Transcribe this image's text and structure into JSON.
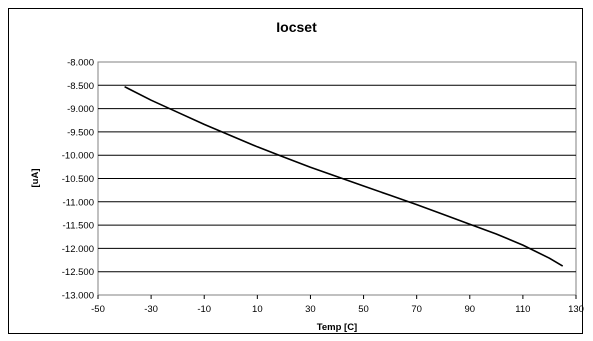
{
  "chart_data": {
    "type": "line",
    "title": "Iocset",
    "xlabel": "Temp [C]",
    "ylabel": "[uA]",
    "xlim": [
      -50,
      130
    ],
    "ylim": [
      -13.0,
      -8.0
    ],
    "xticks": [
      "-50",
      "-30",
      "-10",
      "10",
      "30",
      "50",
      "70",
      "90",
      "110",
      "130"
    ],
    "yticks": [
      "-8.000",
      "-8.500",
      "-9.000",
      "-9.500",
      "-10.000",
      "-10.500",
      "-11.000",
      "-11.500",
      "-12.000",
      "-12.500",
      "-13.000"
    ],
    "grid": "horizontal",
    "legend": "none",
    "plot_background": "#ffffff",
    "line_color": "#000000",
    "series": [
      {
        "x": [
          -40,
          -30,
          -20,
          -10,
          0,
          10,
          20,
          30,
          40,
          50,
          60,
          70,
          80,
          90,
          100,
          110,
          120,
          125
        ],
        "y": [
          -8.53,
          -8.82,
          -9.08,
          -9.34,
          -9.58,
          -9.82,
          -10.04,
          -10.26,
          -10.46,
          -10.66,
          -10.86,
          -11.06,
          -11.27,
          -11.48,
          -11.69,
          -11.93,
          -12.21,
          -12.38
        ]
      }
    ]
  }
}
